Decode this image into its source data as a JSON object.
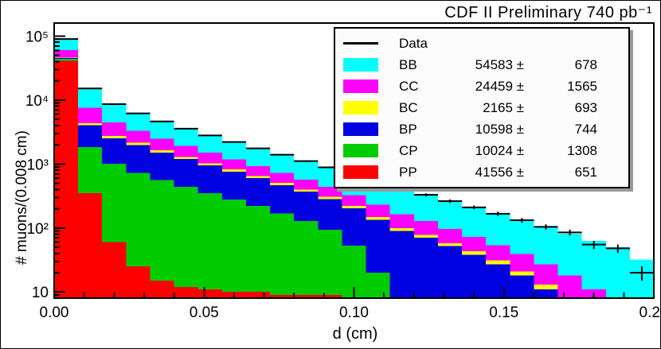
{
  "chart_data": {
    "type": "bar",
    "subtype": "stacked-histogram-log-y",
    "title": "CDF II Preliminary 740 pb⁻¹",
    "xlabel": "d (cm)",
    "ylabel": "# muons/(0.008 cm)",
    "x_range": [
      0,
      0.2
    ],
    "bin_width": 0.008,
    "n_bins": 25,
    "y_scale": "log",
    "y_range": [
      8,
      160000
    ],
    "grid": false,
    "legend_position": "top-right",
    "x_ticks": {
      "major_step": 0.05,
      "minor_step": 0.01,
      "labels": [
        "0.00",
        "0.05",
        "0.10",
        "0.15",
        "0.20"
      ]
    },
    "y_tick_labels": [
      "10",
      "10²",
      "10³",
      "10⁴",
      "10⁵"
    ],
    "series": [
      {
        "name": "PP",
        "color": "#ff0000",
        "fit_value": "41556",
        "fit_error": "651",
        "values": [
          41000,
          350,
          60,
          25,
          15,
          12,
          11,
          10,
          10,
          9,
          9,
          9,
          8,
          0,
          0,
          0,
          0,
          0,
          0,
          0,
          0,
          0,
          0,
          0,
          0
        ]
      },
      {
        "name": "CP",
        "color": "#00cc00",
        "fit_value": "10024",
        "fit_error": "1308",
        "values": [
          3000,
          1500,
          950,
          700,
          550,
          430,
          340,
          270,
          210,
          160,
          120,
          85,
          45,
          20,
          0,
          0,
          0,
          0,
          0,
          0,
          0,
          0,
          0,
          0,
          0
        ]
      },
      {
        "name": "BP",
        "color": "#0000e0",
        "fit_value": "10598",
        "fit_error": "744",
        "values": [
          1500,
          2200,
          1500,
          1250,
          950,
          750,
          600,
          480,
          380,
          300,
          240,
          190,
          150,
          115,
          90,
          70,
          52,
          38,
          27,
          18,
          11,
          6,
          3,
          1,
          0
        ]
      },
      {
        "name": "BC",
        "color": "#ffff00",
        "fit_value": "2165",
        "fit_error": "693",
        "values": [
          850,
          320,
          230,
          170,
          130,
          100,
          78,
          60,
          47,
          36,
          28,
          22,
          17,
          13,
          10,
          8,
          6,
          5,
          4,
          3,
          2,
          2,
          1,
          1,
          1
        ]
      },
      {
        "name": "CC",
        "color": "#ff00ff",
        "fit_value": "24459",
        "fit_error": "1565",
        "values": [
          14500,
          3200,
          1700,
          1150,
          830,
          620,
          470,
          360,
          280,
          220,
          170,
          135,
          105,
          82,
          64,
          50,
          39,
          30,
          23,
          18,
          14,
          10,
          7,
          5,
          3
        ]
      },
      {
        "name": "BB",
        "color": "#00ffff",
        "fit_value": "54583",
        "fit_error": "678",
        "values": [
          29000,
          7600,
          4200,
          2900,
          2150,
          1650,
          1300,
          1030,
          830,
          670,
          545,
          445,
          365,
          300,
          246,
          202,
          166,
          137,
          113,
          93,
          77,
          63,
          52,
          43,
          28
        ]
      }
    ],
    "data_series": {
      "label": "Data",
      "color": "#000000",
      "values": [
        89850,
        15170,
        8640,
        6195,
        4625,
        3562,
        2799,
        2210,
        1757,
        1395,
        1112,
        886,
        690,
        530,
        410,
        330,
        263,
        210,
        167,
        132,
        104,
        85,
        55,
        48,
        20
      ],
      "errors": [
        300,
        123,
        93,
        79,
        68,
        60,
        53,
        47,
        42,
        37,
        33,
        30,
        26,
        23,
        20,
        18,
        16,
        14,
        13,
        11,
        10,
        9,
        8,
        7,
        5
      ]
    },
    "legend_order": [
      "Data",
      "BB",
      "CC",
      "BC",
      "BP",
      "CP",
      "PP"
    ]
  }
}
